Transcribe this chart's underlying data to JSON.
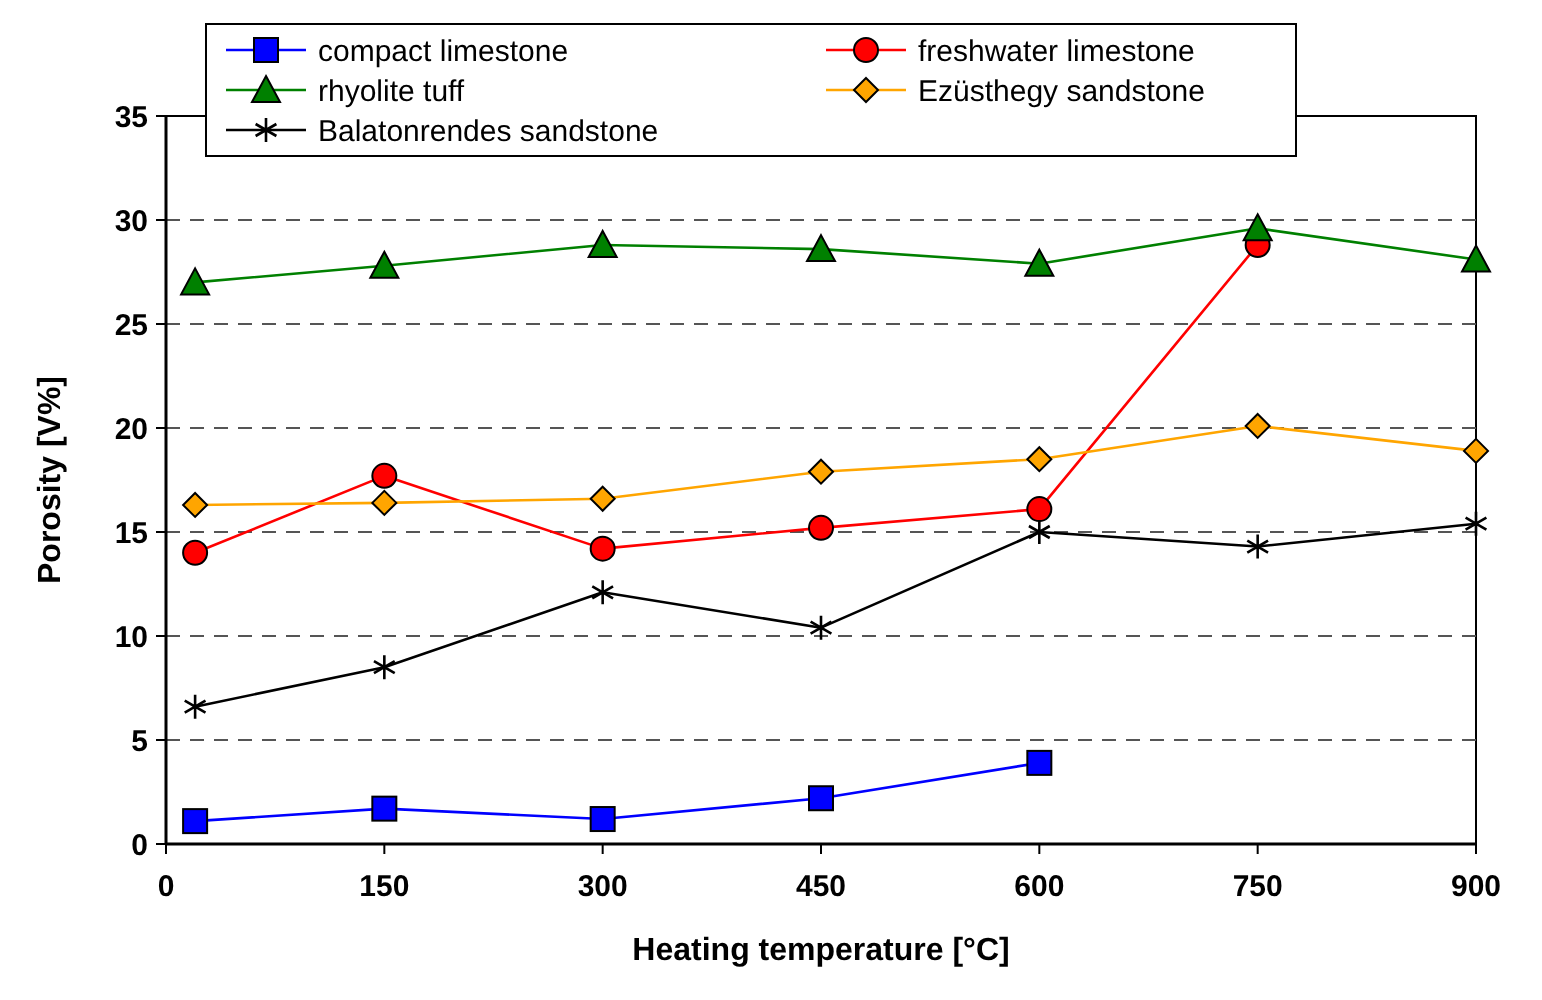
{
  "chart_data": {
    "type": "line",
    "xlabel": "Heating temperature [°C]",
    "ylabel": "Porosity [V%]",
    "x": [
      20,
      150,
      300,
      450,
      600,
      750,
      900
    ],
    "xlim": [
      0,
      900
    ],
    "xticks": [
      0,
      150,
      300,
      450,
      600,
      750,
      900
    ],
    "ylim": [
      0,
      35
    ],
    "yticks": [
      0,
      5,
      10,
      15,
      20,
      25,
      30,
      35
    ],
    "grid": "y",
    "legend": "top",
    "line_style": "solid",
    "series": [
      {
        "name": "compact limestone",
        "color": "#0000ff",
        "marker": "square",
        "values": [
          1.1,
          1.7,
          1.2,
          2.2,
          3.9,
          null,
          null
        ]
      },
      {
        "name": "freshwater limestone",
        "color": "#ff0000",
        "marker": "circle",
        "values": [
          14.0,
          17.7,
          14.2,
          15.2,
          16.1,
          28.8,
          null
        ]
      },
      {
        "name": "rhyolite tuff",
        "color": "#008000",
        "marker": "triangle",
        "values": [
          27.0,
          27.8,
          28.8,
          28.6,
          27.9,
          29.6,
          28.1
        ]
      },
      {
        "name": "Ezüsthegy sandstone",
        "color": "#ffa500",
        "marker": "diamond",
        "values": [
          16.3,
          16.4,
          16.6,
          17.9,
          18.5,
          20.1,
          18.9
        ]
      },
      {
        "name": "Balatonrendes sandstone",
        "color": "#000000",
        "marker": "cross",
        "values": [
          6.6,
          8.5,
          12.1,
          10.4,
          15.0,
          14.3,
          15.4
        ]
      }
    ]
  }
}
